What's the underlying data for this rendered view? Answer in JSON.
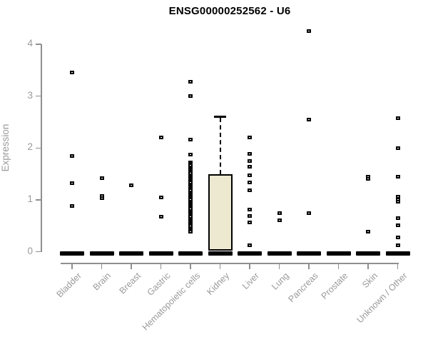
{
  "chart_data": {
    "type": "boxplot",
    "title": "ENSG00000252562 - U6",
    "xlabel": "",
    "ylabel": "Expression",
    "ylim": [
      0,
      4.4
    ],
    "yticks": [
      0,
      1,
      2,
      3,
      4
    ],
    "grid": false,
    "box_fill_color": "#EDE8D0",
    "axis_color": "#8f8f8f",
    "label_color": "#9a9a9a",
    "point_color": "#000000",
    "categories": [
      "Bladder",
      "Brain",
      "Breast",
      "Gastric",
      "Hematopoietic cells",
      "Kidney",
      "Liver",
      "Lung",
      "Pancreas",
      "Prostate",
      "Skin",
      "Unknown / Other"
    ],
    "series": [
      {
        "name": "Bladder",
        "box": {
          "q1": 0,
          "median": 0,
          "q3": 0
        },
        "whisker_low": 0,
        "whisker_high": 0,
        "outliers": [
          3.46,
          1.84,
          1.32,
          0.88
        ]
      },
      {
        "name": "Brain",
        "box": {
          "q1": 0,
          "median": 0,
          "q3": 0
        },
        "whisker_low": 0,
        "whisker_high": 0,
        "outliers": [
          1.42,
          1.07,
          1.03
        ]
      },
      {
        "name": "Breast",
        "box": {
          "q1": 0,
          "median": 0,
          "q3": 0
        },
        "whisker_low": 0,
        "whisker_high": 0,
        "outliers": [
          1.28
        ]
      },
      {
        "name": "Gastric",
        "box": {
          "q1": 0,
          "median": 0,
          "q3": 0
        },
        "whisker_low": 0,
        "whisker_high": 0,
        "outliers": [
          2.21,
          1.05,
          0.68
        ]
      },
      {
        "name": "Hematopoietic cells",
        "box": {
          "q1": 0,
          "median": 0,
          "q3": 0
        },
        "whisker_low": 0,
        "whisker_high": 0,
        "outliers": [
          3.28,
          3.0,
          2.16,
          1.88,
          1.72,
          1.69,
          1.66,
          1.63,
          1.6,
          1.57,
          1.54,
          1.51,
          1.48,
          1.45,
          1.42,
          1.39,
          1.36,
          1.33,
          1.3,
          1.27,
          1.24,
          1.21,
          1.18,
          1.15,
          1.12,
          1.09,
          1.06,
          1.03,
          1.0,
          0.97,
          0.94,
          0.91,
          0.88,
          0.85,
          0.82,
          0.79,
          0.76,
          0.73,
          0.7,
          0.67,
          0.64,
          0.61,
          0.58,
          0.55,
          0.52,
          0.49,
          0.46,
          0.43,
          0.4,
          0.38
        ]
      },
      {
        "name": "Kidney",
        "box": {
          "q1": 0.02,
          "median": 0,
          "q3": 1.5
        },
        "whisker_low": 0,
        "whisker_high": 2.6,
        "outliers": []
      },
      {
        "name": "Liver",
        "box": {
          "q1": 0,
          "median": 0,
          "q3": 0
        },
        "whisker_low": 0,
        "whisker_high": 0,
        "outliers": [
          2.2,
          1.89,
          1.75,
          1.64,
          1.48,
          1.33,
          1.18,
          0.81,
          0.69,
          0.57,
          0.13
        ]
      },
      {
        "name": "Lung",
        "box": {
          "q1": 0,
          "median": 0,
          "q3": 0
        },
        "whisker_low": 0,
        "whisker_high": 0,
        "outliers": [
          0.74,
          0.6
        ]
      },
      {
        "name": "Pancreas",
        "box": {
          "q1": 0,
          "median": 0,
          "q3": 0
        },
        "whisker_low": 0,
        "whisker_high": 0,
        "outliers": [
          4.26,
          2.55,
          0.74
        ]
      },
      {
        "name": "Prostate",
        "box": {
          "q1": 0,
          "median": 0,
          "q3": 0
        },
        "whisker_low": 0,
        "whisker_high": 0,
        "outliers": []
      },
      {
        "name": "Skin",
        "box": {
          "q1": 0,
          "median": 0,
          "q3": 0
        },
        "whisker_low": 0,
        "whisker_high": 0,
        "outliers": [
          1.44,
          1.4,
          0.39
        ]
      },
      {
        "name": "Unknown / Other",
        "box": {
          "q1": 0,
          "median": 0,
          "q3": 0
        },
        "whisker_low": 0,
        "whisker_high": 0,
        "outliers": [
          2.58,
          2.0,
          1.44,
          1.06,
          1.01,
          0.96,
          0.65,
          0.51,
          0.28,
          0.13
        ]
      }
    ]
  }
}
